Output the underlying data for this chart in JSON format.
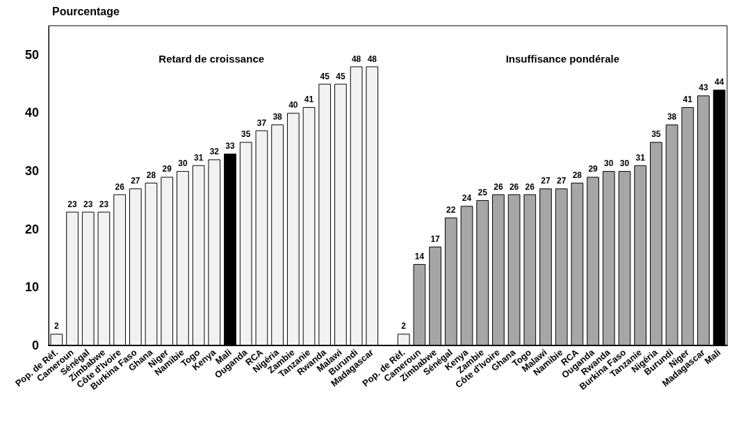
{
  "chart_data": {
    "type": "bar",
    "ylabel": "Pourcentage",
    "annotations": [
      "Retard de croissance",
      "Insuffisance pondérale"
    ],
    "categories": [
      "Pop. de Réf.",
      "Cameroun",
      "Sénégal",
      "Zimbabwe",
      "Côte d'Ivoire",
      "Burkina Faso",
      "Ghana",
      "Niger",
      "Namibie",
      "Togo",
      "Kenya",
      "Mali",
      "Ouganda",
      "RCA",
      "Nigéria",
      "Zambie",
      "Tanzanie",
      "Rwanda",
      "Malawi",
      "Burundi",
      "Madagascar",
      null,
      "Pop. de Réf.",
      "Cameroun",
      "Zimbabwe",
      "Sénégal",
      "Kenya",
      "Zambie",
      "Côte d'Ivoire",
      "Ghana",
      "Togo",
      "Malawi",
      "Namibie",
      "RCA",
      "Ouganda",
      "Rwanda",
      "Burkina Faso",
      "Tanzanie",
      "Nigéria",
      "Burundi",
      "Niger",
      "Madagascar",
      "Mali"
    ],
    "values": [
      2,
      23,
      23,
      23,
      26,
      27,
      28,
      29,
      30,
      31,
      32,
      33,
      35,
      37,
      38,
      40,
      41,
      45,
      45,
      48,
      48,
      null,
      2,
      14,
      17,
      22,
      24,
      25,
      26,
      26,
      26,
      27,
      27,
      28,
      29,
      30,
      30,
      31,
      35,
      38,
      41,
      43,
      44
    ],
    "colors": [
      "#f2f2f2",
      "#f2f2f2",
      "#f2f2f2",
      "#f2f2f2",
      "#f2f2f2",
      "#f2f2f2",
      "#f2f2f2",
      "#f2f2f2",
      "#f2f2f2",
      "#f2f2f2",
      "#f2f2f2",
      "#000000",
      "#f2f2f2",
      "#f2f2f2",
      "#f2f2f2",
      "#f2f2f2",
      "#f2f2f2",
      "#f2f2f2",
      "#f2f2f2",
      "#f2f2f2",
      "#f2f2f2",
      "#ffffff",
      "#f2f2f2",
      "#a6a6a6",
      "#a6a6a6",
      "#a6a6a6",
      "#a6a6a6",
      "#a6a6a6",
      "#a6a6a6",
      "#a6a6a6",
      "#a6a6a6",
      "#a6a6a6",
      "#a6a6a6",
      "#a6a6a6",
      "#a6a6a6",
      "#a6a6a6",
      "#a6a6a6",
      "#a6a6a6",
      "#a6a6a6",
      "#a6a6a6",
      "#a6a6a6",
      "#a6a6a6",
      "#000000"
    ],
    "ylim": [
      0,
      55
    ],
    "yticks": [
      0,
      10,
      20,
      30,
      40,
      50
    ],
    "grid": false,
    "data_labels": true
  }
}
